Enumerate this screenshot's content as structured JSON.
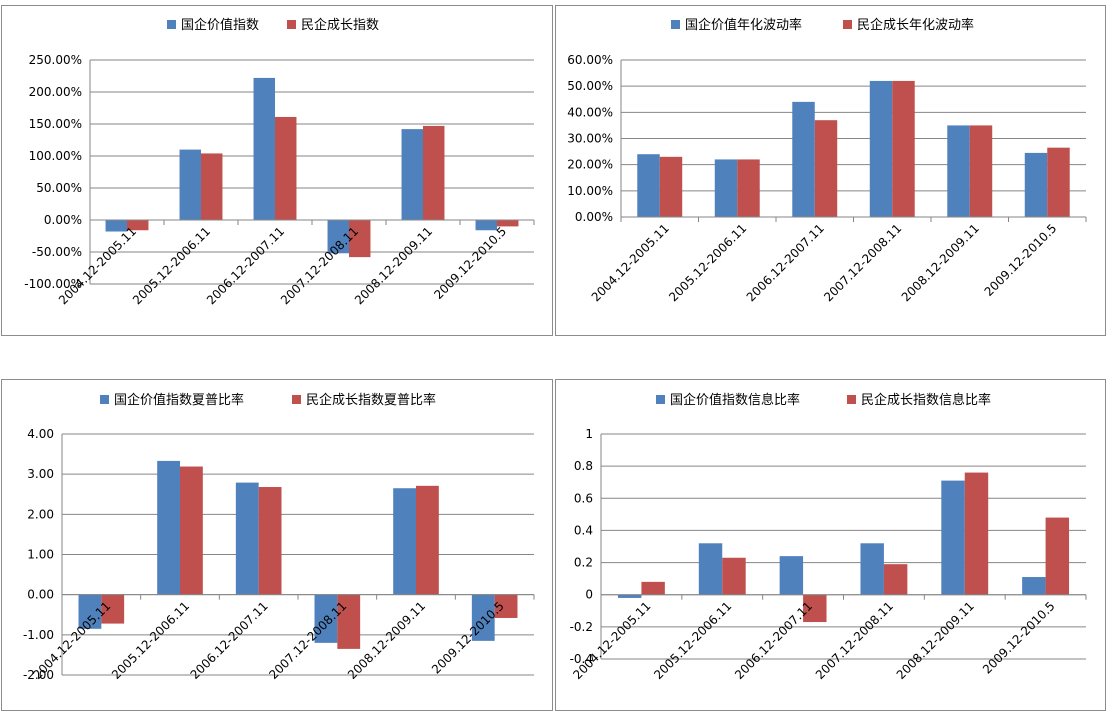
{
  "colors": {
    "series1": "#4f81bd",
    "series2": "#c0504d",
    "grid": "#868686",
    "axis": "#868686"
  },
  "chart_data": [
    {
      "type": "bar",
      "categories": [
        "2004.12-2005.11",
        "2005.12-2006.11",
        "2006.12-2007.11",
        "2007.12-2008.11",
        "2008.12-2009.11",
        "2009.12-2010.5"
      ],
      "series": [
        {
          "name": "国企价值指数",
          "values": [
            -18,
            110,
            222,
            -52,
            142,
            -16
          ]
        },
        {
          "name": "民企成长指数",
          "values": [
            -16,
            104,
            161,
            -58,
            147,
            -10
          ]
        }
      ],
      "ylim": [
        -100,
        250
      ],
      "ticks": [
        250,
        200,
        150,
        100,
        50,
        0,
        -50,
        -100
      ],
      "tick_labels": [
        "250.00%",
        "200.00%",
        "150.00%",
        "100.00%",
        "50.00%",
        "0.00%",
        "-50.00%",
        "-100.00%"
      ],
      "grid": true,
      "legend": "top"
    },
    {
      "type": "bar",
      "categories": [
        "2004.12-2005.11",
        "2005.12-2006.11",
        "2006.12-2007.11",
        "2007.12-2008.11",
        "2008.12-2009.11",
        "2009.12-2010.5"
      ],
      "series": [
        {
          "name": "国企价值年化波动率",
          "values": [
            24,
            22,
            44,
            52,
            35,
            24.5
          ]
        },
        {
          "name": "民企成长年化波动率",
          "values": [
            23,
            22,
            37,
            52,
            35,
            26.5
          ]
        }
      ],
      "ylim": [
        0,
        60
      ],
      "ticks": [
        60,
        50,
        40,
        30,
        20,
        10,
        0
      ],
      "tick_labels": [
        "60.00%",
        "50.00%",
        "40.00%",
        "30.00%",
        "20.00%",
        "10.00%",
        "0.00%"
      ],
      "grid": true,
      "legend": "top"
    },
    {
      "type": "bar",
      "categories": [
        "2004.12-2005.11",
        "2005.12-2006.11",
        "2006.12-2007.11",
        "2007.12-2008.11",
        "2008.12-2009.11",
        "2009.12-2010.5"
      ],
      "series": [
        {
          "name": "国企价值指数夏普比率",
          "values": [
            -0.85,
            3.33,
            2.79,
            -1.2,
            2.65,
            -1.15
          ]
        },
        {
          "name": "民企成长指数夏普比率",
          "values": [
            -0.72,
            3.19,
            2.68,
            -1.35,
            2.71,
            -0.58
          ]
        }
      ],
      "ylim": [
        -2,
        4
      ],
      "ticks": [
        4,
        3,
        2,
        1,
        0,
        -1,
        -2
      ],
      "tick_labels": [
        "4.00",
        "3.00",
        "2.00",
        "1.00",
        "0.00",
        "-1.00",
        "-2.00"
      ],
      "grid": true,
      "legend": "top"
    },
    {
      "type": "bar",
      "categories": [
        "2004.12-2005.11",
        "2005.12-2006.11",
        "2006.12-2007.11",
        "2007.12-2008.11",
        "2008.12-2009.11",
        "2009.12-2010.5"
      ],
      "series": [
        {
          "name": "国企价值指数信息比率",
          "values": [
            -0.02,
            0.32,
            0.24,
            0.32,
            0.71,
            0.11
          ]
        },
        {
          "name": "民企成长指数信息比率",
          "values": [
            0.08,
            0.23,
            -0.17,
            0.19,
            0.76,
            0.48
          ]
        }
      ],
      "ylim": [
        -0.4,
        1
      ],
      "ticks": [
        1,
        0.8,
        0.6,
        0.4,
        0.2,
        0,
        -0.2,
        -0.4
      ],
      "tick_labels": [
        "1",
        "0.8",
        "0.6",
        "0.4",
        "0.2",
        "0",
        "-0.2",
        "-0.4"
      ],
      "grid": true,
      "legend": "top"
    }
  ]
}
